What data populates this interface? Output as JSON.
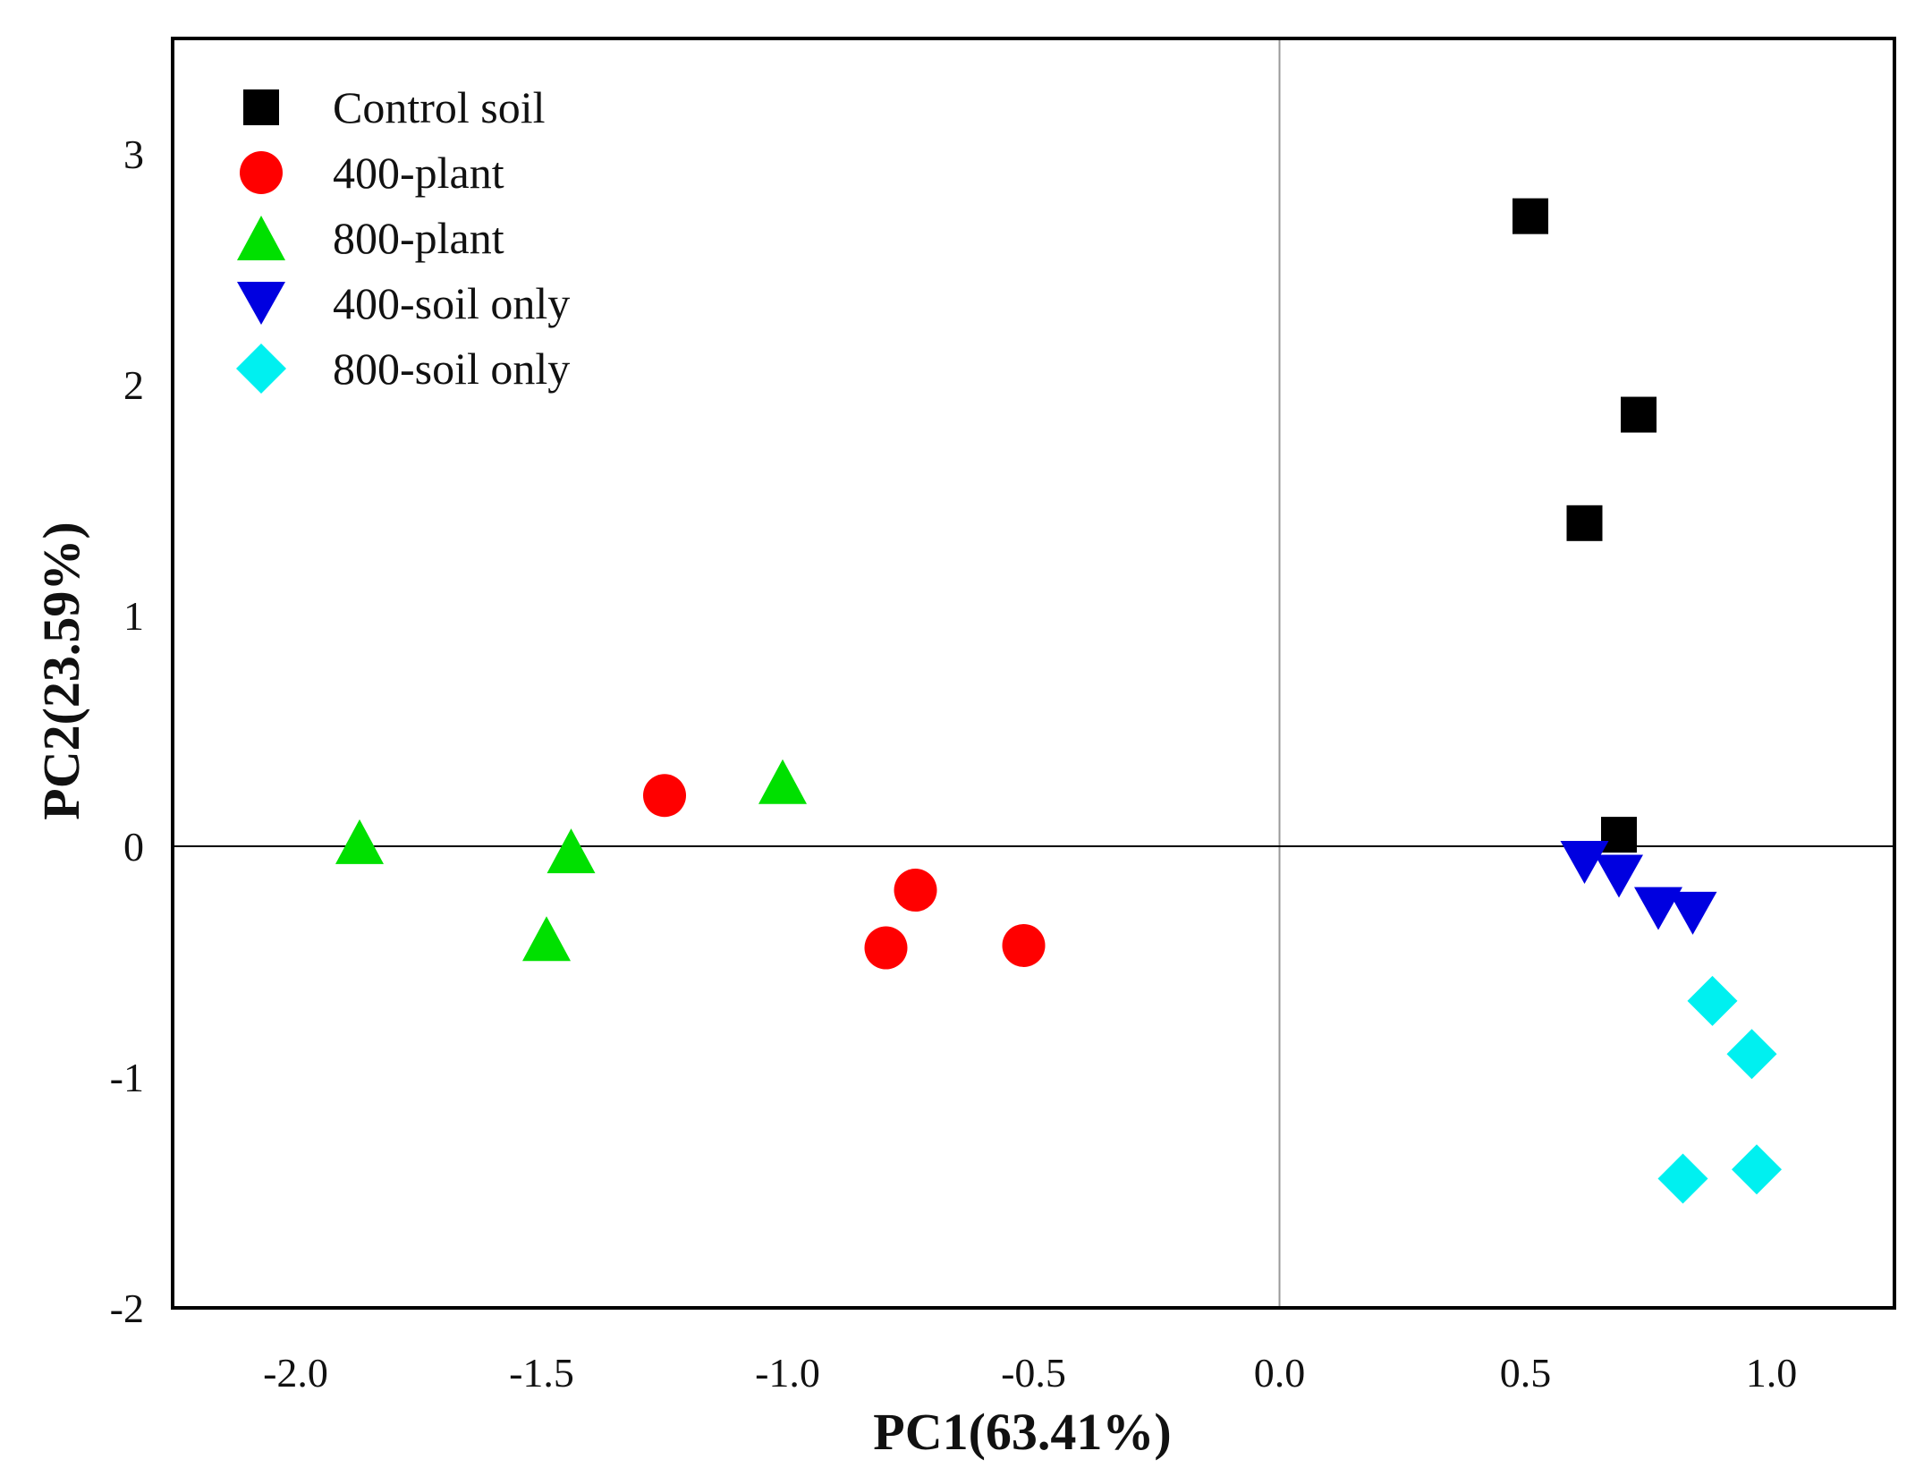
{
  "chart_data": {
    "type": "scatter",
    "title": "",
    "xlabel": "PC1(63.41%)",
    "ylabel": "PC2(23.59%)",
    "xlim": [
      -2.25,
      1.25
    ],
    "ylim": [
      -2.0,
      3.5
    ],
    "xticks": [
      -2.0,
      -1.5,
      -1.0,
      -0.5,
      0.0,
      0.5,
      1.0
    ],
    "xtick_labels": [
      "-2.0",
      "-1.5",
      "-1.0",
      "-0.5",
      "0.0",
      "0.5",
      "1.0"
    ],
    "yticks": [
      -2,
      -1,
      0,
      1,
      2,
      3
    ],
    "ytick_labels": [
      "-2",
      "-1",
      "0",
      "1",
      "2",
      "3"
    ],
    "grid": false,
    "reference_lines": {
      "x": 0,
      "y": 0
    },
    "legend_position": "top-left",
    "series": [
      {
        "name": "Control soil",
        "marker": "square",
        "color": "#000000",
        "points": [
          [
            0.51,
            2.73
          ],
          [
            0.73,
            1.87
          ],
          [
            0.62,
            1.4
          ],
          [
            0.69,
            0.05
          ]
        ]
      },
      {
        "name": "400-plant",
        "marker": "circle",
        "color": "#ff0000",
        "points": [
          [
            -1.25,
            0.22
          ],
          [
            -0.74,
            -0.19
          ],
          [
            -0.8,
            -0.44
          ],
          [
            -0.52,
            -0.43
          ]
        ]
      },
      {
        "name": "800-plant",
        "marker": "triangle-up",
        "color": "#00e000",
        "points": [
          [
            -1.87,
            0.02
          ],
          [
            -1.44,
            -0.02
          ],
          [
            -1.49,
            -0.4
          ],
          [
            -1.01,
            0.28
          ]
        ]
      },
      {
        "name": "400-soil only",
        "marker": "triangle-down",
        "color": "#0000e0",
        "points": [
          [
            0.62,
            -0.07
          ],
          [
            0.69,
            -0.13
          ],
          [
            0.77,
            -0.27
          ],
          [
            0.84,
            -0.29
          ]
        ]
      },
      {
        "name": "800-soil only",
        "marker": "diamond",
        "color": "#00f0f0",
        "points": [
          [
            0.88,
            -0.67
          ],
          [
            0.96,
            -0.9
          ],
          [
            0.82,
            -1.44
          ],
          [
            0.97,
            -1.4
          ]
        ]
      }
    ]
  }
}
